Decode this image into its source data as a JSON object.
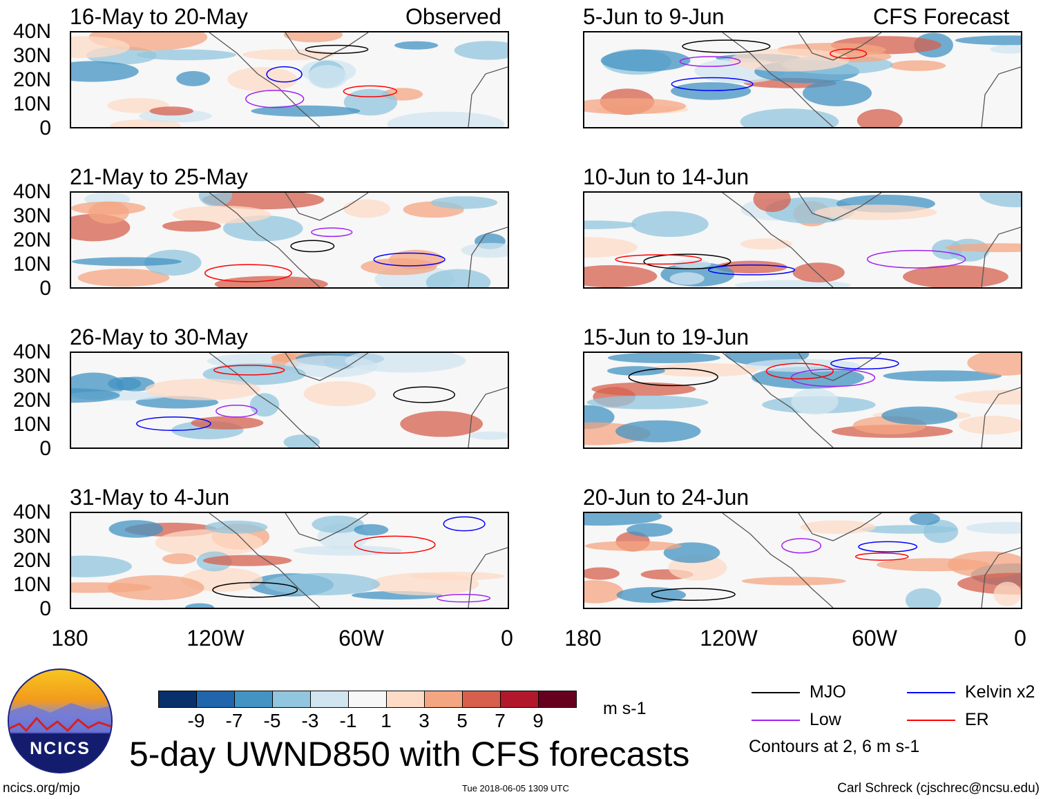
{
  "header": {
    "left_label": "Observed",
    "right_label": "CFS Forecast"
  },
  "chart_data": {
    "type": "heatmap",
    "title": "5-day UWND850 with CFS forecasts",
    "variable": "850 hPa zonal wind anomaly",
    "units": "m s-1",
    "lat_ticks": [
      "40N",
      "30N",
      "20N",
      "10N",
      "0"
    ],
    "lon_ticks": [
      "180",
      "120W",
      "60W",
      "0"
    ],
    "observed_panels": [
      "16-May to 20-May",
      "21-May to 25-May",
      "26-May to 30-May",
      "31-May to 4-Jun"
    ],
    "forecast_panels": [
      "5-Jun to 9-Jun",
      "10-Jun to 14-Jun",
      "15-Jun to 19-Jun",
      "20-Jun to 24-Jun"
    ],
    "colorbar": {
      "labels": [
        "-9",
        "-7",
        "-5",
        "-3",
        "-1",
        "1",
        "3",
        "5",
        "7",
        "9"
      ],
      "colors": [
        "#08306b",
        "#2166ac",
        "#4393c3",
        "#92c5de",
        "#d1e5f0",
        "#f7f7f7",
        "#fddbc7",
        "#f4a582",
        "#d6604d",
        "#b2182b",
        "#67001f"
      ]
    },
    "legend": [
      {
        "name": "MJO",
        "color": "#000000"
      },
      {
        "name": "Kelvin x2",
        "color": "#0000ff"
      },
      {
        "name": "Low",
        "color": "#a020f0"
      },
      {
        "name": "ER",
        "color": "#ff0000"
      }
    ],
    "contour_note": "Contours at 2, 6 m s-1"
  },
  "footer": {
    "logo_text": "NCICS",
    "url": "ncics.org/mjo",
    "timestamp": "Tue 2018-06-05 1309 UTC",
    "credit": "Carl Schreck (cjschrec@ncsu.edu)"
  }
}
